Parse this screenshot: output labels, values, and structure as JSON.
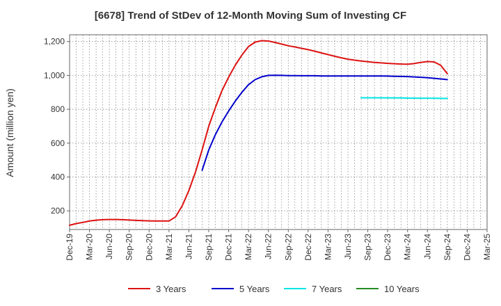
{
  "chart_data": {
    "type": "line",
    "title": "[6678]  Trend of StDev of 12-Month Moving Sum of Investing CF",
    "ylabel": "Amount (million yen)",
    "xlabel": "",
    "ylim": [
      90,
      1240
    ],
    "yticks": [
      200,
      400,
      600,
      800,
      1000,
      1200
    ],
    "ytick_labels": [
      "200",
      "400",
      "600",
      "800",
      "1,000",
      "1,200"
    ],
    "x_start": "Dec-19",
    "x_months": 63,
    "x_tick_labels": [
      "Dec-19",
      "Mar-20",
      "Jun-20",
      "Sep-20",
      "Dec-20",
      "Mar-21",
      "Jun-21",
      "Sep-21",
      "Dec-21",
      "Mar-22",
      "Jun-22",
      "Sep-22",
      "Dec-22",
      "Mar-23",
      "Jun-23",
      "Sep-23",
      "Dec-23",
      "Mar-24",
      "Jun-24",
      "Sep-24",
      "Dec-24",
      "Mar-25"
    ],
    "grid": true,
    "legend_position": "bottom",
    "series": [
      {
        "name": "3 Years",
        "color": "#dd1111",
        "points": [
          [
            "Dec-19",
            115
          ],
          [
            "Jan-20",
            125
          ],
          [
            "Feb-20",
            132
          ],
          [
            "Mar-20",
            140
          ],
          [
            "Apr-20",
            145
          ],
          [
            "May-20",
            148
          ],
          [
            "Jun-20",
            149
          ],
          [
            "Jul-20",
            149
          ],
          [
            "Aug-20",
            148
          ],
          [
            "Sep-20",
            146
          ],
          [
            "Oct-20",
            144
          ],
          [
            "Nov-20",
            142
          ],
          [
            "Dec-20",
            141
          ],
          [
            "Jan-21",
            140
          ],
          [
            "Feb-21",
            140
          ],
          [
            "Mar-21",
            140
          ],
          [
            "Apr-21",
            165
          ],
          [
            "May-21",
            230
          ],
          [
            "Jun-21",
            320
          ],
          [
            "Jul-21",
            430
          ],
          [
            "Aug-21",
            560
          ],
          [
            "Sep-21",
            700
          ],
          [
            "Oct-21",
            810
          ],
          [
            "Nov-21",
            910
          ],
          [
            "Dec-21",
            990
          ],
          [
            "Jan-22",
            1060
          ],
          [
            "Feb-22",
            1120
          ],
          [
            "Mar-22",
            1170
          ],
          [
            "Apr-22",
            1197
          ],
          [
            "May-22",
            1205
          ],
          [
            "Jun-22",
            1203
          ],
          [
            "Jul-22",
            1195
          ],
          [
            "Aug-22",
            1185
          ],
          [
            "Sep-22",
            1175
          ],
          [
            "Oct-22",
            1168
          ],
          [
            "Nov-22",
            1160
          ],
          [
            "Dec-22",
            1152
          ],
          [
            "Jan-23",
            1143
          ],
          [
            "Feb-23",
            1133
          ],
          [
            "Mar-23",
            1123
          ],
          [
            "Apr-23",
            1113
          ],
          [
            "May-23",
            1104
          ],
          [
            "Jun-23",
            1096
          ],
          [
            "Jul-23",
            1090
          ],
          [
            "Aug-23",
            1085
          ],
          [
            "Sep-23",
            1081
          ],
          [
            "Oct-23",
            1077
          ],
          [
            "Nov-23",
            1074
          ],
          [
            "Dec-23",
            1071
          ],
          [
            "Jan-24",
            1069
          ],
          [
            "Feb-24",
            1067
          ],
          [
            "Mar-24",
            1066
          ],
          [
            "Apr-24",
            1070
          ],
          [
            "May-24",
            1077
          ],
          [
            "Jun-24",
            1082
          ],
          [
            "Jul-24",
            1080
          ],
          [
            "Aug-24",
            1060
          ],
          [
            "Sep-24",
            1010
          ]
        ]
      },
      {
        "name": "5 Years",
        "color": "#0000cc",
        "points": [
          [
            "Aug-21",
            440
          ],
          [
            "Sep-21",
            560
          ],
          [
            "Oct-21",
            650
          ],
          [
            "Nov-21",
            725
          ],
          [
            "Dec-21",
            790
          ],
          [
            "Jan-22",
            848
          ],
          [
            "Feb-22",
            900
          ],
          [
            "Mar-22",
            945
          ],
          [
            "Apr-22",
            975
          ],
          [
            "May-22",
            992
          ],
          [
            "Jun-22",
            1000
          ],
          [
            "Jul-22",
            1001
          ],
          [
            "Aug-22",
            1000
          ],
          [
            "Sep-22",
            999
          ],
          [
            "Oct-22",
            999
          ],
          [
            "Nov-22",
            998
          ],
          [
            "Dec-22",
            998
          ],
          [
            "Jan-23",
            998
          ],
          [
            "Feb-23",
            997
          ],
          [
            "Mar-23",
            997
          ],
          [
            "Apr-23",
            997
          ],
          [
            "May-23",
            997
          ],
          [
            "Jun-23",
            997
          ],
          [
            "Jul-23",
            997
          ],
          [
            "Aug-23",
            997
          ],
          [
            "Sep-23",
            997
          ],
          [
            "Oct-23",
            997
          ],
          [
            "Nov-23",
            997
          ],
          [
            "Dec-23",
            996
          ],
          [
            "Jan-24",
            995
          ],
          [
            "Feb-24",
            994
          ],
          [
            "Mar-24",
            993
          ],
          [
            "Apr-24",
            991
          ],
          [
            "May-24",
            989
          ],
          [
            "Jun-24",
            986
          ],
          [
            "Jul-24",
            983
          ],
          [
            "Aug-24",
            979
          ],
          [
            "Sep-24",
            975
          ]
        ]
      },
      {
        "name": "7 Years",
        "color": "#00e5e5",
        "points": [
          [
            "Aug-23",
            868
          ],
          [
            "Sep-23",
            868
          ],
          [
            "Oct-23",
            868
          ],
          [
            "Nov-23",
            868
          ],
          [
            "Dec-23",
            867
          ],
          [
            "Jan-24",
            867
          ],
          [
            "Feb-24",
            867
          ],
          [
            "Mar-24",
            866
          ],
          [
            "Apr-24",
            866
          ],
          [
            "May-24",
            865
          ],
          [
            "Jun-24",
            865
          ],
          [
            "Jul-24",
            865
          ],
          [
            "Aug-24",
            864
          ],
          [
            "Sep-24",
            864
          ]
        ]
      },
      {
        "name": "10 Years",
        "color": "#228b22",
        "points": []
      }
    ]
  }
}
